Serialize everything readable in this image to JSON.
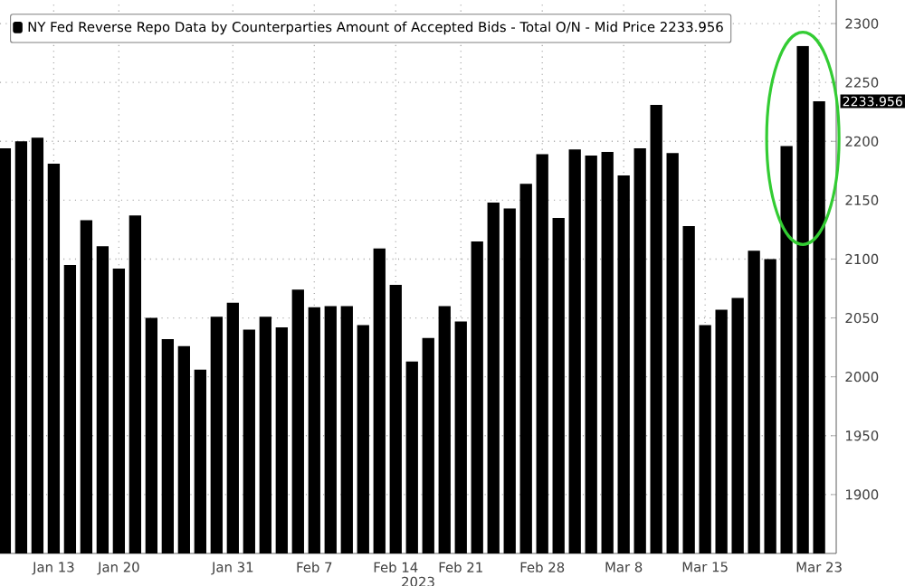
{
  "chart_data": {
    "type": "bar",
    "xlabel": "2023",
    "categories": [
      null,
      null,
      null,
      "Jan 13",
      null,
      null,
      null,
      "Jan 20",
      null,
      null,
      null,
      null,
      null,
      null,
      "Jan 31",
      null,
      null,
      null,
      null,
      "Feb 7",
      null,
      null,
      null,
      null,
      "Feb 14",
      null,
      null,
      null,
      "Feb 21",
      null,
      null,
      null,
      null,
      "Feb 28",
      null,
      null,
      null,
      null,
      "Mar 8",
      null,
      null,
      null,
      null,
      "Mar 15",
      null,
      null,
      null,
      null,
      null,
      null,
      "Mar 23"
    ],
    "series": [
      {
        "name": "NY Fed Reverse Repo Data by Counterparties Amount of Accepted Bids - Total O/N - Mid Price 2233.956",
        "color": "#000000",
        "values": [
          2194,
          2200,
          2203,
          2181,
          2095,
          2133,
          2111,
          2092,
          2137,
          2050,
          2032,
          2026,
          2006,
          2051,
          2063,
          2040,
          2051,
          2042,
          2074,
          2059,
          2060,
          2060,
          2044,
          2109,
          2078,
          2013,
          2033,
          2060,
          2047,
          2115,
          2148,
          2143,
          2164,
          2189,
          2135,
          2193,
          2188,
          2191,
          2171,
          2194,
          2231,
          2190,
          2128,
          2044,
          2057,
          2067,
          2107,
          2100,
          2196,
          2281,
          2233.956
        ]
      }
    ],
    "ylim": [
      1850,
      2320
    ],
    "yticks": [
      1900,
      1950,
      2000,
      2050,
      2100,
      2150,
      2200,
      2250,
      2300
    ],
    "grid": true,
    "legend": "top left",
    "annotations": [
      "2233.956"
    ]
  }
}
